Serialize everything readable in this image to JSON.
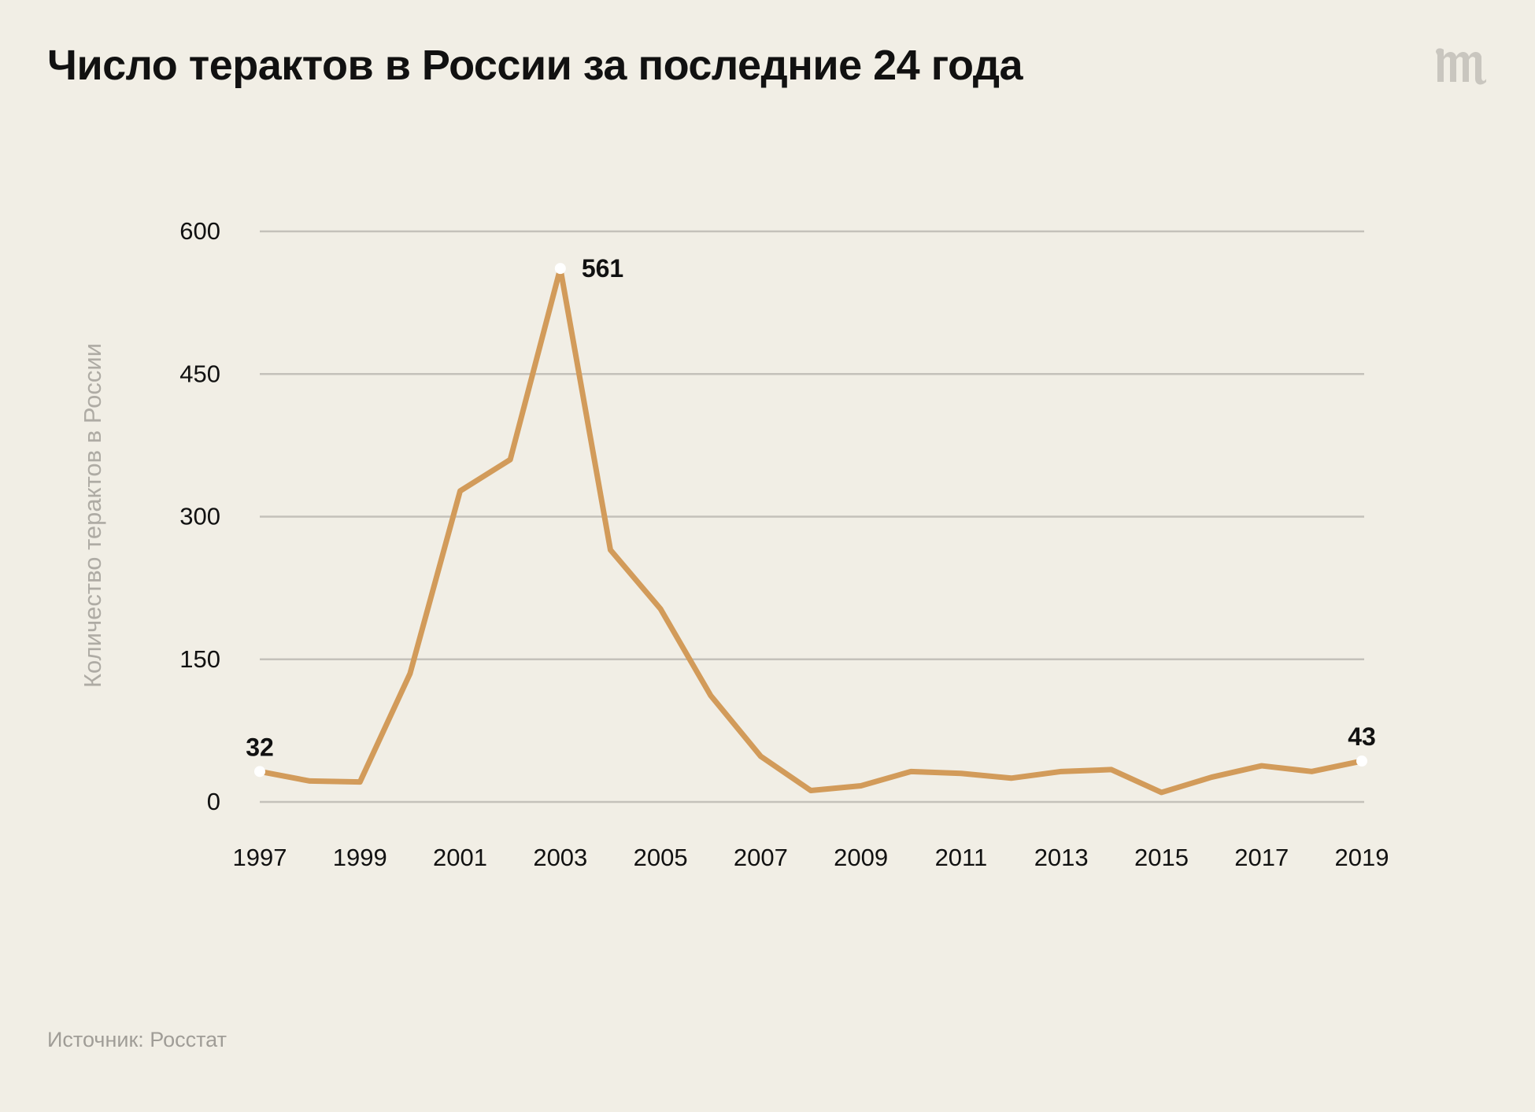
{
  "title": "Число терактов в России за последние 24 года",
  "source": "Источник: Росстат",
  "logo_icon": "meduza-logo-icon",
  "colors": {
    "background": "#f1eee5",
    "line": "#d29b5a",
    "grid": "#c4c1ba",
    "axis_title": "#aeaba4",
    "text": "#111111"
  },
  "chart_data": {
    "type": "line",
    "title": "Число терактов в России за последние 24 года",
    "xlabel": "",
    "ylabel": "Количество терактов в России",
    "x": [
      1997,
      1998,
      1999,
      2000,
      2001,
      2002,
      2003,
      2004,
      2005,
      2006,
      2007,
      2008,
      2009,
      2010,
      2011,
      2012,
      2013,
      2014,
      2015,
      2016,
      2017,
      2018,
      2019
    ],
    "series": [
      {
        "name": "Число терактов",
        "values": [
          32,
          22,
          21,
          135,
          327,
          360,
          561,
          265,
          203,
          112,
          48,
          12,
          17,
          32,
          30,
          25,
          32,
          34,
          10,
          26,
          38,
          32,
          43
        ]
      }
    ],
    "xticks": [
      "1997",
      "1999",
      "2001",
      "2003",
      "2005",
      "2007",
      "2009",
      "2011",
      "2013",
      "2015",
      "2017",
      "2019"
    ],
    "yticks": [
      "0",
      "150",
      "300",
      "450",
      "600"
    ],
    "ylim": [
      0,
      600
    ],
    "grid": true,
    "annotations": [
      {
        "x": 1997,
        "value": 32,
        "label": "32"
      },
      {
        "x": 2003,
        "value": 561,
        "label": "561"
      },
      {
        "x": 2019,
        "value": 43,
        "label": "43"
      }
    ]
  }
}
